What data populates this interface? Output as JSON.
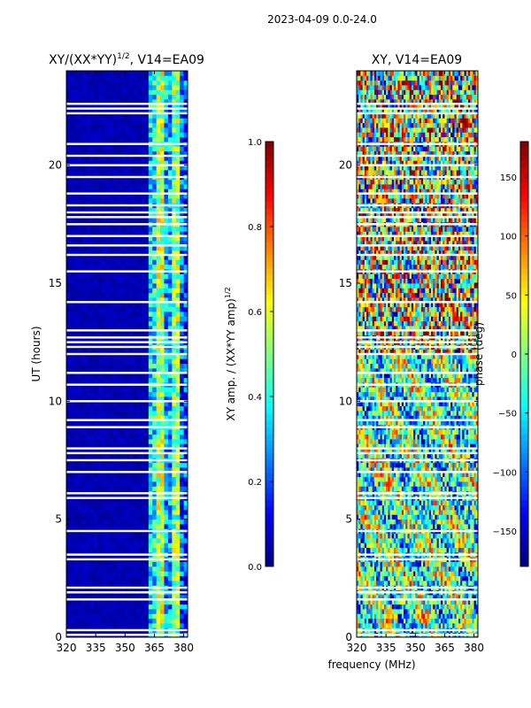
{
  "figure": {
    "suptitle": "2023-04-09 0.0-24.0",
    "xlabel": "frequency (MHz)"
  },
  "chart_data": [
    {
      "type": "heatmap",
      "title_main": "XY/(XX*YY)",
      "title_exp": "1/2",
      "title_tail": ", V14=EA09",
      "ylabel": "UT (hours)",
      "xlim": [
        320,
        382
      ],
      "ylim": [
        0,
        24
      ],
      "xticks": [
        320,
        335,
        350,
        365,
        380
      ],
      "yticks": [
        0,
        5,
        10,
        15,
        20
      ],
      "colorbar": {
        "label_main": "XY amp. / (XX*YY amp)",
        "label_exp": "1/2",
        "range": [
          0.0,
          1.0
        ],
        "ticks": [
          "0.0",
          "0.2",
          "0.4",
          "0.6",
          "0.8",
          "1.0"
        ],
        "tick_values": [
          0.0,
          0.2,
          0.4,
          0.6,
          0.8,
          1.0
        ],
        "colormap": "jet"
      },
      "description": "Normalized XY amplitude; low (~0.05) across 320-362 MHz, elevated (0.3-0.8) in 362-380 MHz band",
      "band_levels": [
        {
          "from_mhz": 320,
          "to_mhz": 362,
          "level": 0.05
        },
        {
          "from_mhz": 362,
          "to_mhz": 366,
          "level": 0.35
        },
        {
          "from_mhz": 366,
          "to_mhz": 371,
          "level": 0.55
        },
        {
          "from_mhz": 371,
          "to_mhz": 374,
          "level": 0.3
        },
        {
          "from_mhz": 374,
          "to_mhz": 379,
          "level": 0.5
        },
        {
          "from_mhz": 379,
          "to_mhz": 382,
          "level": 0.2
        }
      ],
      "flagged_ut_hours": [
        0.1,
        0.3,
        1.6,
        1.9,
        2.1,
        3.3,
        3.5,
        4.5,
        5.9,
        6.1,
        7.0,
        7.5,
        7.8,
        8.0,
        8.9,
        9.2,
        10.0,
        10.7,
        11.2,
        12.0,
        12.3,
        12.5,
        12.7,
        13.0,
        14.2,
        15.5,
        16.2,
        16.6,
        17.0,
        17.5,
        17.8,
        18.0,
        18.3,
        18.8,
        19.5,
        20.0,
        20.4,
        20.9,
        22.2,
        22.4,
        22.6
      ]
    },
    {
      "type": "heatmap",
      "title": "XY, V14=EA09",
      "xlim": [
        320,
        382
      ],
      "ylim": [
        0,
        24
      ],
      "xticks": [
        320,
        335,
        350,
        365,
        380
      ],
      "yticks": [
        0,
        5,
        10,
        15,
        20
      ],
      "colorbar": {
        "label": "phase (deg)",
        "range": [
          -180,
          180
        ],
        "ticks": [
          "150",
          "100",
          "50",
          "0",
          "−50",
          "−100",
          "−150"
        ],
        "tick_values": [
          150,
          100,
          50,
          0,
          -50,
          -100,
          -150
        ],
        "colormap": "jet"
      },
      "description": "XY phase in degrees; noisy mix of values, more red/orange at high UT, cyan/green dominated at low UT",
      "flagged_ut_hours": [
        0.1,
        0.3,
        1.6,
        1.9,
        2.1,
        3.3,
        3.5,
        4.5,
        5.9,
        6.1,
        7.0,
        7.5,
        7.8,
        8.0,
        8.9,
        9.2,
        10.0,
        10.7,
        11.2,
        12.0,
        12.3,
        12.5,
        12.7,
        13.0,
        14.2,
        15.5,
        16.2,
        16.6,
        17.0,
        17.5,
        17.8,
        18.0,
        18.3,
        18.8,
        19.5,
        20.0,
        20.4,
        20.9,
        22.2,
        22.4,
        22.6
      ]
    }
  ]
}
